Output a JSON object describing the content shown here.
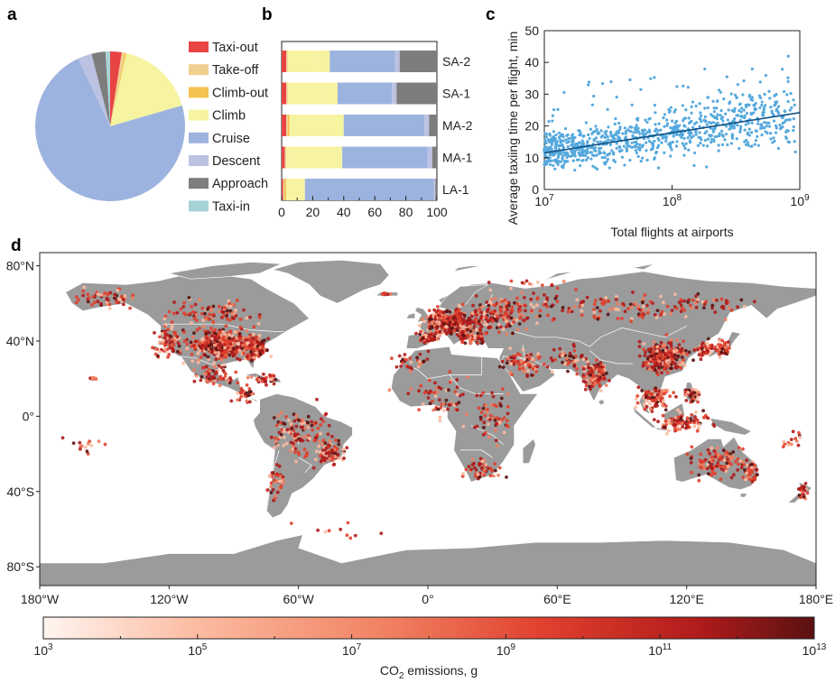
{
  "panels": {
    "a": "a",
    "b": "b",
    "c": "c",
    "d": "d"
  },
  "colors": {
    "taxi_out": "#e84444",
    "take_off": "#f0cf90",
    "climb_out": "#f3c24f",
    "climb": "#f6f3a1",
    "cruise": "#9db3df",
    "descent": "#bcc2e2",
    "approach": "#7d7d7d",
    "taxi_in": "#a8d3d5",
    "scatter": "#56a9dd",
    "fit_line": "#0f4f84",
    "land": "#9b9b9b",
    "border": "#ffffff"
  },
  "chart_data": [
    {
      "id": "a",
      "type": "pie",
      "legend": [
        "Taxi-out",
        "Take-off",
        "Climb-out",
        "Climb",
        "Cruise",
        "Descent",
        "Approach",
        "Taxi-in"
      ],
      "values": [
        2.5,
        0.7,
        0.3,
        17.0,
        72.5,
        3.0,
        3.0,
        1.0
      ],
      "unit": "percent"
    },
    {
      "id": "b",
      "type": "bar",
      "orientation": "horizontal",
      "stacked": true,
      "categories": [
        "SA-2",
        "SA-1",
        "MA-2",
        "MA-1",
        "LA-1"
      ],
      "series": [
        {
          "name": "Taxi-out",
          "values": [
            3,
            3,
            3,
            2,
            1
          ]
        },
        {
          "name": "Take-off",
          "values": [
            1,
            1,
            1,
            1,
            1
          ]
        },
        {
          "name": "Climb-out",
          "values": [
            0,
            0,
            1,
            0,
            1
          ]
        },
        {
          "name": "Climb",
          "values": [
            20,
            24,
            2,
            3,
            0
          ]
        },
        {
          "name": "Climb",
          "values": [
            7,
            8,
            33,
            33,
            12
          ]
        },
        {
          "name": "Cruise",
          "values": [
            42,
            35,
            52,
            55,
            83
          ]
        },
        {
          "name": "Descent",
          "values": [
            3,
            3,
            3,
            3,
            1
          ]
        },
        {
          "name": "Approach",
          "values": [
            24,
            26,
            5,
            3,
            1
          ]
        }
      ],
      "xlim": [
        0,
        100
      ],
      "xticks": [
        "0",
        "20",
        "40",
        "60",
        "80",
        "100"
      ]
    },
    {
      "id": "c",
      "type": "scatter",
      "xlabel": "Total flights at airports",
      "ylabel": "Average taxiing time per flight, min",
      "xscale": "log",
      "xlim": [
        10000000,
        1000000000
      ],
      "xticks": [
        {
          "value": 10000000,
          "base": "10",
          "exp": "7"
        },
        {
          "value": 100000000,
          "base": "10",
          "exp": "8"
        },
        {
          "value": 1000000000,
          "base": "10",
          "exp": "9"
        }
      ],
      "ylim": [
        0,
        50
      ],
      "yticks": [
        "0",
        "10",
        "20",
        "30",
        "40",
        "50"
      ],
      "fit_line": {
        "x": [
          10000000,
          1000000000
        ],
        "y": [
          11.5,
          24.2
        ]
      },
      "points": {
        "count": 900,
        "description": "dense cluster between 5 and 25 min, spreading upward with increasing traffic"
      }
    },
    {
      "id": "d",
      "type": "map",
      "lon_ticks": [
        "180°W",
        "120°W",
        "60°W",
        "0°",
        "60°E",
        "120°E",
        "180°E"
      ],
      "lat_ticks": [
        "80°N",
        "40°N",
        "0°",
        "40°S",
        "80°S"
      ],
      "colorbar": {
        "label_prefix": "CO",
        "label_sub": "2",
        "label_suffix": " emissions, g",
        "ticks": [
          {
            "base": "10",
            "exp": "3"
          },
          {
            "base": "10",
            "exp": "5"
          },
          {
            "base": "10",
            "exp": "7"
          },
          {
            "base": "10",
            "exp": "9"
          },
          {
            "base": "10",
            "exp": "11"
          },
          {
            "base": "10",
            "exp": "13"
          }
        ],
        "colors": [
          "#fff5f0",
          "#fcbba1",
          "#f08060",
          "#e0402e",
          "#b01b1b",
          "#5a1212"
        ]
      }
    }
  ]
}
